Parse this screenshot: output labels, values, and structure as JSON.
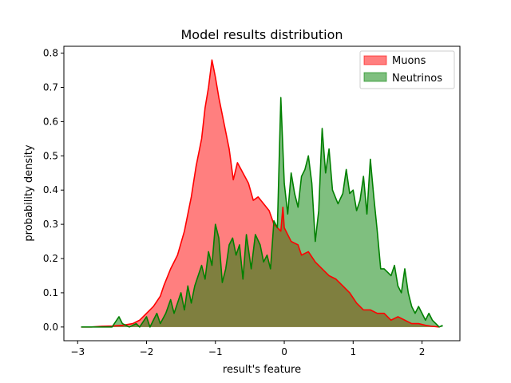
{
  "chart_data": {
    "type": "area",
    "title": "Model results distribution",
    "xlabel": "result's feature",
    "ylabel": "probability density",
    "xlim": [
      -3.2,
      2.55
    ],
    "ylim": [
      -0.04,
      0.82
    ],
    "x_ticks": [
      -3,
      -2,
      -1,
      0,
      1,
      2
    ],
    "x_tick_labels": [
      "−3",
      "−2",
      "−1",
      "0",
      "1",
      "2"
    ],
    "y_ticks": [
      0.0,
      0.1,
      0.2,
      0.3,
      0.4,
      0.5,
      0.6,
      0.7,
      0.8
    ],
    "y_tick_labels": [
      "0.0",
      "0.1",
      "0.2",
      "0.3",
      "0.4",
      "0.5",
      "0.6",
      "0.7",
      "0.8"
    ],
    "grid": false,
    "legend_position": "top-right",
    "series": [
      {
        "name": "Muons",
        "line_color": "#ff0000",
        "fill_color": "#ff0000",
        "fill_opacity": 0.5,
        "points": [
          [
            -2.95,
            0.0
          ],
          [
            -2.8,
            0.0
          ],
          [
            -2.65,
            0.002
          ],
          [
            -2.5,
            0.003
          ],
          [
            -2.35,
            0.005
          ],
          [
            -2.2,
            0.01
          ],
          [
            -2.1,
            0.02
          ],
          [
            -2.0,
            0.04
          ],
          [
            -1.9,
            0.06
          ],
          [
            -1.8,
            0.09
          ],
          [
            -1.75,
            0.12
          ],
          [
            -1.65,
            0.17
          ],
          [
            -1.55,
            0.21
          ],
          [
            -1.45,
            0.28
          ],
          [
            -1.35,
            0.38
          ],
          [
            -1.28,
            0.47
          ],
          [
            -1.2,
            0.55
          ],
          [
            -1.15,
            0.64
          ],
          [
            -1.1,
            0.7
          ],
          [
            -1.05,
            0.78
          ],
          [
            -1.0,
            0.73
          ],
          [
            -0.95,
            0.67
          ],
          [
            -0.88,
            0.6
          ],
          [
            -0.8,
            0.52
          ],
          [
            -0.74,
            0.43
          ],
          [
            -0.68,
            0.48
          ],
          [
            -0.6,
            0.45
          ],
          [
            -0.52,
            0.42
          ],
          [
            -0.45,
            0.37
          ],
          [
            -0.38,
            0.38
          ],
          [
            -0.3,
            0.36
          ],
          [
            -0.22,
            0.34
          ],
          [
            -0.15,
            0.3
          ],
          [
            -0.05,
            0.28
          ],
          [
            -0.02,
            0.35
          ],
          [
            0.0,
            0.29
          ],
          [
            0.1,
            0.25
          ],
          [
            0.2,
            0.24
          ],
          [
            0.25,
            0.21
          ],
          [
            0.35,
            0.22
          ],
          [
            0.45,
            0.19
          ],
          [
            0.55,
            0.17
          ],
          [
            0.65,
            0.15
          ],
          [
            0.75,
            0.14
          ],
          [
            0.85,
            0.12
          ],
          [
            0.95,
            0.1
          ],
          [
            1.05,
            0.07
          ],
          [
            1.15,
            0.05
          ],
          [
            1.25,
            0.05
          ],
          [
            1.35,
            0.04
          ],
          [
            1.45,
            0.04
          ],
          [
            1.55,
            0.02
          ],
          [
            1.65,
            0.03
          ],
          [
            1.75,
            0.02
          ],
          [
            1.85,
            0.01
          ],
          [
            1.95,
            0.01
          ],
          [
            2.05,
            0.005
          ],
          [
            2.15,
            0.002
          ],
          [
            2.25,
            0.0
          ]
        ]
      },
      {
        "name": "Neutrinos",
        "line_color": "#008000",
        "fill_color": "#008000",
        "fill_opacity": 0.5,
        "points": [
          [
            -2.95,
            0.0
          ],
          [
            -2.7,
            0.0
          ],
          [
            -2.5,
            0.0
          ],
          [
            -2.4,
            0.03
          ],
          [
            -2.35,
            0.01
          ],
          [
            -2.25,
            0.0
          ],
          [
            -2.15,
            0.01
          ],
          [
            -2.1,
            0.0
          ],
          [
            -2.0,
            0.03
          ],
          [
            -1.95,
            0.0
          ],
          [
            -1.85,
            0.04
          ],
          [
            -1.8,
            0.01
          ],
          [
            -1.72,
            0.04
          ],
          [
            -1.65,
            0.08
          ],
          [
            -1.6,
            0.04
          ],
          [
            -1.5,
            0.1
          ],
          [
            -1.45,
            0.05
          ],
          [
            -1.4,
            0.12
          ],
          [
            -1.35,
            0.07
          ],
          [
            -1.3,
            0.12
          ],
          [
            -1.25,
            0.15
          ],
          [
            -1.2,
            0.18
          ],
          [
            -1.15,
            0.14
          ],
          [
            -1.1,
            0.22
          ],
          [
            -1.05,
            0.18
          ],
          [
            -1.0,
            0.3
          ],
          [
            -0.95,
            0.26
          ],
          [
            -0.9,
            0.13
          ],
          [
            -0.85,
            0.17
          ],
          [
            -0.8,
            0.24
          ],
          [
            -0.75,
            0.26
          ],
          [
            -0.7,
            0.21
          ],
          [
            -0.65,
            0.24
          ],
          [
            -0.6,
            0.14
          ],
          [
            -0.55,
            0.27
          ],
          [
            -0.48,
            0.17
          ],
          [
            -0.42,
            0.27
          ],
          [
            -0.35,
            0.24
          ],
          [
            -0.3,
            0.19
          ],
          [
            -0.25,
            0.21
          ],
          [
            -0.2,
            0.17
          ],
          [
            -0.15,
            0.31
          ],
          [
            -0.1,
            0.29
          ],
          [
            -0.05,
            0.67
          ],
          [
            0.0,
            0.42
          ],
          [
            0.05,
            0.33
          ],
          [
            0.1,
            0.45
          ],
          [
            0.15,
            0.39
          ],
          [
            0.2,
            0.35
          ],
          [
            0.25,
            0.44
          ],
          [
            0.3,
            0.46
          ],
          [
            0.35,
            0.5
          ],
          [
            0.4,
            0.42
          ],
          [
            0.45,
            0.25
          ],
          [
            0.5,
            0.34
          ],
          [
            0.55,
            0.58
          ],
          [
            0.6,
            0.45
          ],
          [
            0.65,
            0.52
          ],
          [
            0.7,
            0.4
          ],
          [
            0.78,
            0.36
          ],
          [
            0.85,
            0.39
          ],
          [
            0.9,
            0.46
          ],
          [
            0.95,
            0.39
          ],
          [
            1.0,
            0.4
          ],
          [
            1.05,
            0.34
          ],
          [
            1.1,
            0.37
          ],
          [
            1.15,
            0.44
          ],
          [
            1.2,
            0.33
          ],
          [
            1.25,
            0.49
          ],
          [
            1.3,
            0.38
          ],
          [
            1.35,
            0.28
          ],
          [
            1.4,
            0.17
          ],
          [
            1.45,
            0.17
          ],
          [
            1.5,
            0.16
          ],
          [
            1.55,
            0.15
          ],
          [
            1.6,
            0.18
          ],
          [
            1.65,
            0.12
          ],
          [
            1.7,
            0.1
          ],
          [
            1.75,
            0.17
          ],
          [
            1.8,
            0.1
          ],
          [
            1.85,
            0.06
          ],
          [
            1.9,
            0.04
          ],
          [
            1.95,
            0.06
          ],
          [
            2.0,
            0.04
          ],
          [
            2.05,
            0.02
          ],
          [
            2.1,
            0.04
          ],
          [
            2.15,
            0.02
          ],
          [
            2.2,
            0.01
          ],
          [
            2.25,
            0.0
          ],
          [
            2.3,
            0.005
          ]
        ]
      }
    ]
  }
}
